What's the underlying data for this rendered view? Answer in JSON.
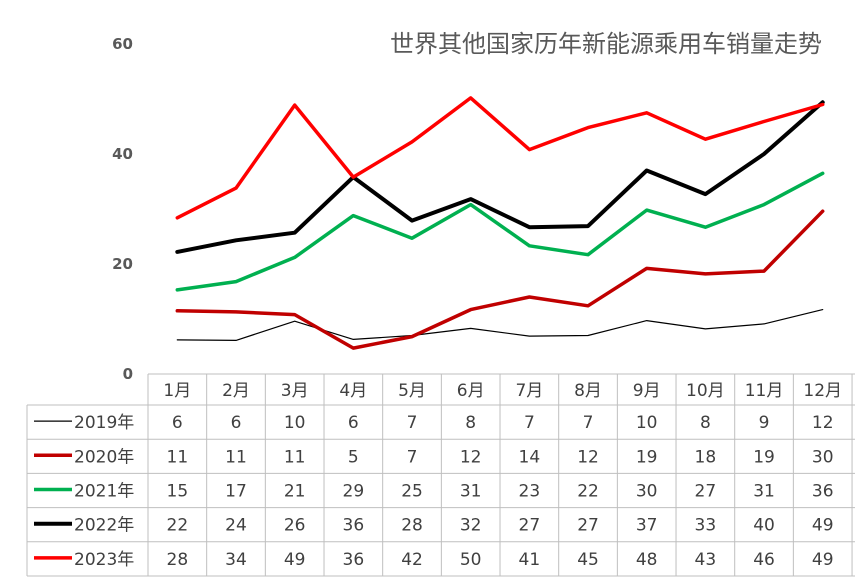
{
  "chart_data": {
    "type": "line",
    "title": "世界其他国家历年新能源乘用车销量走势",
    "categories": [
      "1月",
      "2月",
      "3月",
      "4月",
      "5月",
      "6月",
      "7月",
      "8月",
      "9月",
      "10月",
      "11月",
      "12月"
    ],
    "ylim": [
      0,
      60
    ],
    "yticks": [
      "0",
      "20",
      "40",
      "60"
    ],
    "grid": false,
    "legend": "data-table-rows",
    "series": [
      {
        "name": "2019年",
        "color": "#000000",
        "stroke": 1.2,
        "values": [
          6,
          6,
          10,
          6,
          7,
          8,
          7,
          7,
          10,
          8,
          9,
          12
        ],
        "plot": [
          6.2,
          6.1,
          9.6,
          6.3,
          7.0,
          8.3,
          6.9,
          7.0,
          9.7,
          8.2,
          9.1,
          11.7
        ]
      },
      {
        "name": "2020年",
        "color": "#C00000",
        "stroke": 3.5,
        "values": [
          11,
          11,
          11,
          5,
          7,
          12,
          14,
          12,
          19,
          18,
          19,
          30
        ],
        "plot": [
          11.5,
          11.3,
          10.8,
          4.7,
          6.8,
          11.7,
          14.0,
          12.4,
          19.2,
          18.2,
          18.7,
          29.6
        ]
      },
      {
        "name": "2021年",
        "color": "#00B050",
        "stroke": 3.5,
        "values": [
          15,
          17,
          21,
          29,
          25,
          31,
          23,
          22,
          30,
          27,
          31,
          36
        ],
        "plot": [
          15.3,
          16.8,
          21.2,
          28.8,
          24.7,
          30.8,
          23.3,
          21.7,
          29.8,
          26.7,
          30.8,
          36.5
        ]
      },
      {
        "name": "2022年",
        "color": "#000000",
        "stroke": 4,
        "values": [
          22,
          24,
          26,
          36,
          28,
          32,
          27,
          27,
          37,
          33,
          40,
          49
        ],
        "plot": [
          22.2,
          24.3,
          25.7,
          35.8,
          27.9,
          31.8,
          26.7,
          26.9,
          37.0,
          32.7,
          40.0,
          49.4
        ]
      },
      {
        "name": "2023年",
        "color": "#FF0000",
        "stroke": 3.5,
        "values": [
          28,
          34,
          49,
          36,
          42,
          50,
          41,
          45,
          48,
          43,
          46,
          49
        ],
        "plot": [
          28.4,
          33.8,
          48.9,
          35.8,
          42.2,
          50.2,
          40.8,
          44.8,
          47.5,
          42.7,
          45.9,
          49.0
        ]
      }
    ]
  }
}
